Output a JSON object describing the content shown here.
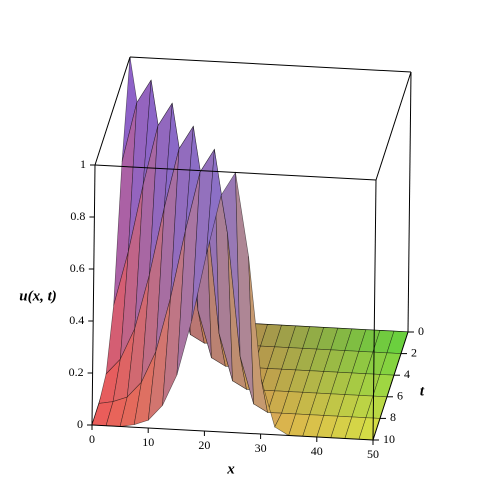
{
  "chart_data": {
    "type": "surface",
    "x_label": "x",
    "t_label": "t",
    "z_label": "u(x, t)",
    "x": [
      0,
      2.5,
      5,
      7.5,
      10,
      12.5,
      15,
      17.5,
      20,
      22.5,
      25,
      27.5,
      30,
      32.5,
      35,
      37.5,
      40,
      42.5,
      45,
      47.5,
      50
    ],
    "t": [
      0,
      2,
      4,
      6,
      8,
      10
    ],
    "z": [
      [
        1,
        0.68,
        0.21,
        0.03,
        0,
        0,
        0,
        0,
        0,
        0,
        0,
        0,
        0,
        0,
        0,
        0,
        0,
        0,
        0,
        0,
        0
      ],
      [
        0.68,
        0.91,
        1,
        0.68,
        0.21,
        0.03,
        0,
        0,
        0,
        0,
        0,
        0,
        0,
        0,
        0,
        0,
        0,
        0,
        0,
        0,
        0
      ],
      [
        0.21,
        0.42,
        0.68,
        0.91,
        1,
        0.68,
        0.21,
        0.03,
        0,
        0,
        0,
        0,
        0,
        0,
        0,
        0,
        0,
        0,
        0,
        0,
        0
      ],
      [
        0.03,
        0.09,
        0.21,
        0.42,
        0.68,
        0.91,
        1,
        0.68,
        0.21,
        0.03,
        0,
        0,
        0,
        0,
        0,
        0,
        0,
        0,
        0,
        0,
        0
      ],
      [
        0,
        0.01,
        0.03,
        0.09,
        0.21,
        0.42,
        0.68,
        0.91,
        1,
        0.68,
        0.21,
        0.03,
        0,
        0,
        0,
        0,
        0,
        0,
        0,
        0,
        0
      ],
      [
        0,
        0,
        0,
        0.01,
        0.03,
        0.09,
        0.21,
        0.42,
        0.68,
        0.91,
        1,
        0.68,
        0.21,
        0.03,
        0,
        0,
        0,
        0,
        0,
        0,
        0
      ]
    ],
    "xlim": [
      0,
      50
    ],
    "tlim": [
      0,
      10
    ],
    "zlim": [
      0,
      1
    ],
    "xticks": [
      0,
      10,
      20,
      30,
      40,
      50
    ],
    "tticks": [
      0,
      2,
      4,
      6,
      8,
      10
    ],
    "zticks": [
      0,
      0.2,
      0.4,
      0.6,
      0.8,
      1
    ]
  }
}
